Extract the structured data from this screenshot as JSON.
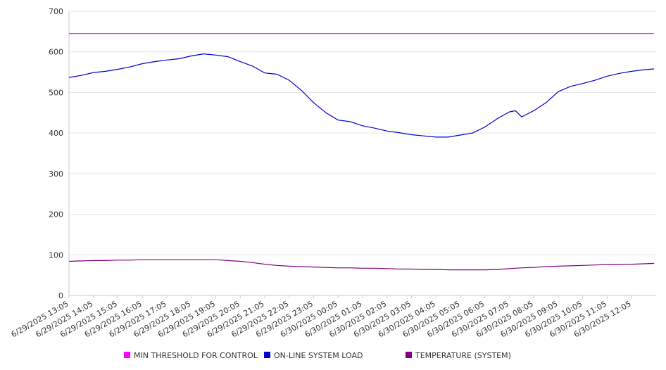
{
  "chart_data": {
    "type": "line",
    "title": "",
    "xlabel": "",
    "ylabel": "",
    "ylim": [
      0,
      700
    ],
    "yticks": [
      0,
      100,
      200,
      300,
      400,
      500,
      600,
      700
    ],
    "grid": true,
    "legend_placement": "bottom",
    "x_tick_labels": [
      "6/29/2025 13:05",
      "6/29/2025 14:05",
      "6/29/2025 15:05",
      "6/29/2025 16:05",
      "6/29/2025 17:05",
      "6/29/2025 18:05",
      "6/29/2025 19:05",
      "6/29/2025 20:05",
      "6/29/2025 21:05",
      "6/29/2025 22:05",
      "6/29/2025 23:05",
      "6/30/2025 00:05",
      "6/30/2025 01:05",
      "6/30/2025 02:05",
      "6/30/2025 03:05",
      "6/30/2025 04:05",
      "6/30/2025 05:05",
      "6/30/2025 06:05",
      "6/30/2025 07:05",
      "6/30/2025 08:05",
      "6/30/2025 09:05",
      "6/30/2025 10:05",
      "6/30/2025 11:05",
      "6/30/2025 12:05"
    ],
    "x": [
      "6/29/2025 13:05",
      "6/29/2025 13:35",
      "6/29/2025 14:05",
      "6/29/2025 14:35",
      "6/29/2025 15:05",
      "6/29/2025 15:35",
      "6/29/2025 16:05",
      "6/29/2025 16:35",
      "6/29/2025 17:05",
      "6/29/2025 17:35",
      "6/29/2025 18:05",
      "6/29/2025 18:35",
      "6/29/2025 19:05",
      "6/29/2025 19:35",
      "6/29/2025 20:05",
      "6/29/2025 20:35",
      "6/29/2025 21:05",
      "6/29/2025 21:35",
      "6/29/2025 22:05",
      "6/29/2025 22:35",
      "6/29/2025 23:05",
      "6/29/2025 23:35",
      "6/30/2025 00:05",
      "6/30/2025 00:35",
      "6/30/2025 01:05",
      "6/30/2025 01:35",
      "6/30/2025 02:05",
      "6/30/2025 02:35",
      "6/30/2025 03:05",
      "6/30/2025 03:35",
      "6/30/2025 04:05",
      "6/30/2025 04:35",
      "6/30/2025 05:05",
      "6/30/2025 05:35",
      "6/30/2025 06:05",
      "6/30/2025 06:35",
      "6/30/2025 07:05",
      "6/30/2025 07:20",
      "6/30/2025 07:35",
      "6/30/2025 08:05",
      "6/30/2025 08:35",
      "6/30/2025 09:05",
      "6/30/2025 09:35",
      "6/30/2025 10:05",
      "6/30/2025 10:35",
      "6/30/2025 11:05",
      "6/30/2025 11:35",
      "6/30/2025 12:05",
      "6/30/2025 12:35",
      "6/30/2025 13:00"
    ],
    "series": [
      {
        "name": "MIN THRESHOLD FOR CONTROL",
        "color": "#ff00ff",
        "values": [
          645,
          645,
          645,
          645,
          645,
          645,
          645,
          645,
          645,
          645,
          645,
          645,
          645,
          645,
          645,
          645,
          645,
          645,
          645,
          645,
          645,
          645,
          645,
          645,
          645,
          645,
          645,
          645,
          645,
          645,
          645,
          645,
          645,
          645,
          645,
          645,
          645,
          645,
          645,
          645,
          645,
          645,
          645,
          645,
          645,
          645,
          645,
          645,
          645,
          645
        ]
      },
      {
        "name": "ON-LINE SYSTEM LOAD",
        "color": "#0000cc",
        "values": [
          537,
          542,
          549,
          552,
          557,
          563,
          571,
          576,
          580,
          583,
          590,
          595,
          592,
          588,
          576,
          565,
          548,
          545,
          530,
          505,
          475,
          450,
          432,
          428,
          418,
          412,
          405,
          401,
          396,
          393,
          390,
          390,
          395,
          400,
          415,
          435,
          452,
          455,
          440,
          455,
          475,
          502,
          515,
          522,
          530,
          540,
          547,
          552,
          556,
          558
        ]
      },
      {
        "name": "TEMPERATURE (SYSTEM)",
        "color": "#800080",
        "values": [
          84,
          85,
          86,
          86,
          87,
          87,
          88,
          88,
          88,
          88,
          88,
          88,
          88,
          86,
          84,
          81,
          77,
          74,
          72,
          71,
          70,
          69,
          68,
          68,
          67,
          67,
          66,
          65,
          65,
          64,
          64,
          63,
          63,
          63,
          63,
          64,
          66,
          67,
          68,
          69,
          71,
          72,
          73,
          74,
          75,
          76,
          76,
          77,
          78,
          79
        ]
      }
    ]
  }
}
